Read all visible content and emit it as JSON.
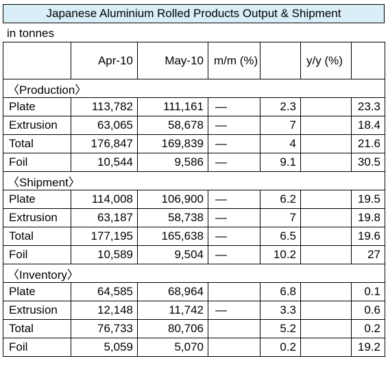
{
  "title": "Japanese Aluminium Rolled Products Output & Shipment",
  "unit_note": "in tonnes",
  "columns": {
    "apr": "Apr-10",
    "may": "May-10",
    "mm": "m/m (%)",
    "yy": "y/y (%)"
  },
  "sections": [
    {
      "label": "〈Production〉",
      "rows": [
        {
          "name": "Plate",
          "apr": "113,782",
          "may": "111,161",
          "mm_sign": "—",
          "mm": "2.3",
          "yy_sign": "",
          "yy": "23.3"
        },
        {
          "name": "Extrusion",
          "apr": "63,065",
          "may": "58,678",
          "mm_sign": "—",
          "mm": "7",
          "yy_sign": "",
          "yy": "18.4"
        },
        {
          "name": "Total",
          "apr": "176,847",
          "may": "169,839",
          "mm_sign": "—",
          "mm": "4",
          "yy_sign": "",
          "yy": "21.6"
        },
        {
          "name": "Foil",
          "apr": "10,544",
          "may": "9,586",
          "mm_sign": "—",
          "mm": "9.1",
          "yy_sign": "",
          "yy": "30.5"
        }
      ]
    },
    {
      "label": "〈Shipment〉",
      "rows": [
        {
          "name": "Plate",
          "apr": "114,008",
          "may": "106,900",
          "mm_sign": "—",
          "mm": "6.2",
          "yy_sign": "",
          "yy": "19.5"
        },
        {
          "name": "Extrusion",
          "apr": "63,187",
          "may": "58,738",
          "mm_sign": "—",
          "mm": "7",
          "yy_sign": "",
          "yy": "19.8"
        },
        {
          "name": "Total",
          "apr": "177,195",
          "may": "165,638",
          "mm_sign": "—",
          "mm": "6.5",
          "yy_sign": "",
          "yy": "19.6"
        },
        {
          "name": "Foil",
          "apr": "10,589",
          "may": "9,504",
          "mm_sign": "—",
          "mm": "10.2",
          "yy_sign": "",
          "yy": "27"
        }
      ]
    },
    {
      "label": "〈Inventory〉",
      "rows": [
        {
          "name": "Plate",
          "apr": "64,585",
          "may": "68,964",
          "mm_sign": "",
          "mm": "6.8",
          "yy_sign": "",
          "yy": "0.1"
        },
        {
          "name": "Extrusion",
          "apr": "12,148",
          "may": "11,742",
          "mm_sign": "—",
          "mm": "3.3",
          "yy_sign": "",
          "yy": "0.6"
        },
        {
          "name": "Total",
          "apr": "76,733",
          "may": "80,706",
          "mm_sign": "",
          "mm": "5.2",
          "yy_sign": "",
          "yy": "0.2"
        },
        {
          "name": "Foil",
          "apr": "5,059",
          "may": "5,070",
          "mm_sign": "",
          "mm": "0.2",
          "yy_sign": "",
          "yy": "19.2"
        }
      ]
    }
  ]
}
